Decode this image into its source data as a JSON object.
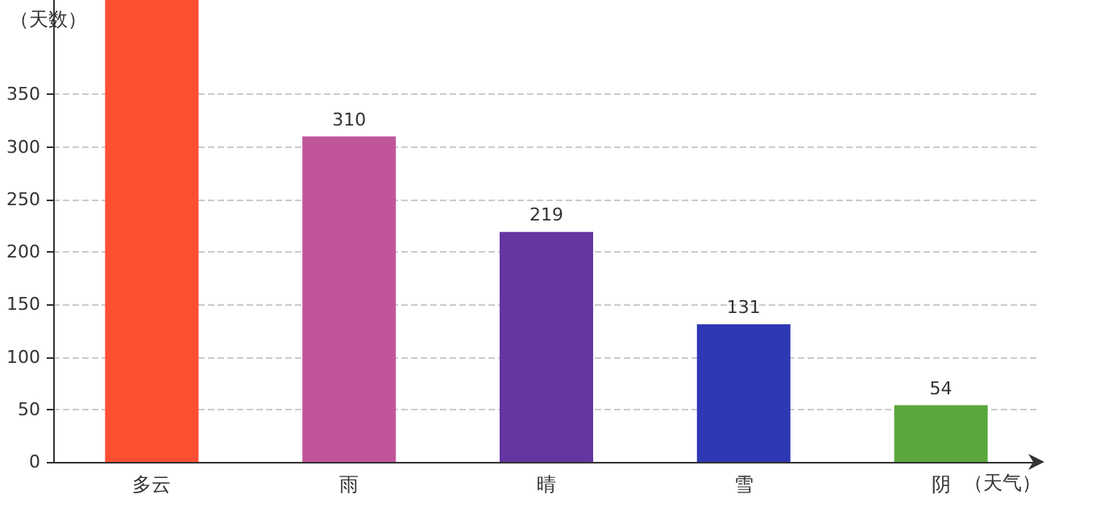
{
  "chart_data": {
    "type": "bar",
    "xlabel": "（天气）",
    "ylabel": "（天数）",
    "categories": [
      "多云",
      "雨",
      "晴",
      "雪",
      "阴"
    ],
    "values": [
      440,
      310,
      219,
      131,
      54
    ],
    "colors": [
      "#ff4f33",
      "#c0559a",
      "#6535a0",
      "#2e37b4",
      "#5aa83c"
    ],
    "value_labels": [
      null,
      "310",
      "219",
      "131",
      "54"
    ],
    "ylim": [
      0,
      440
    ],
    "yticks": [
      0,
      50,
      100,
      150,
      200,
      250,
      300,
      350
    ],
    "grid": "y"
  }
}
